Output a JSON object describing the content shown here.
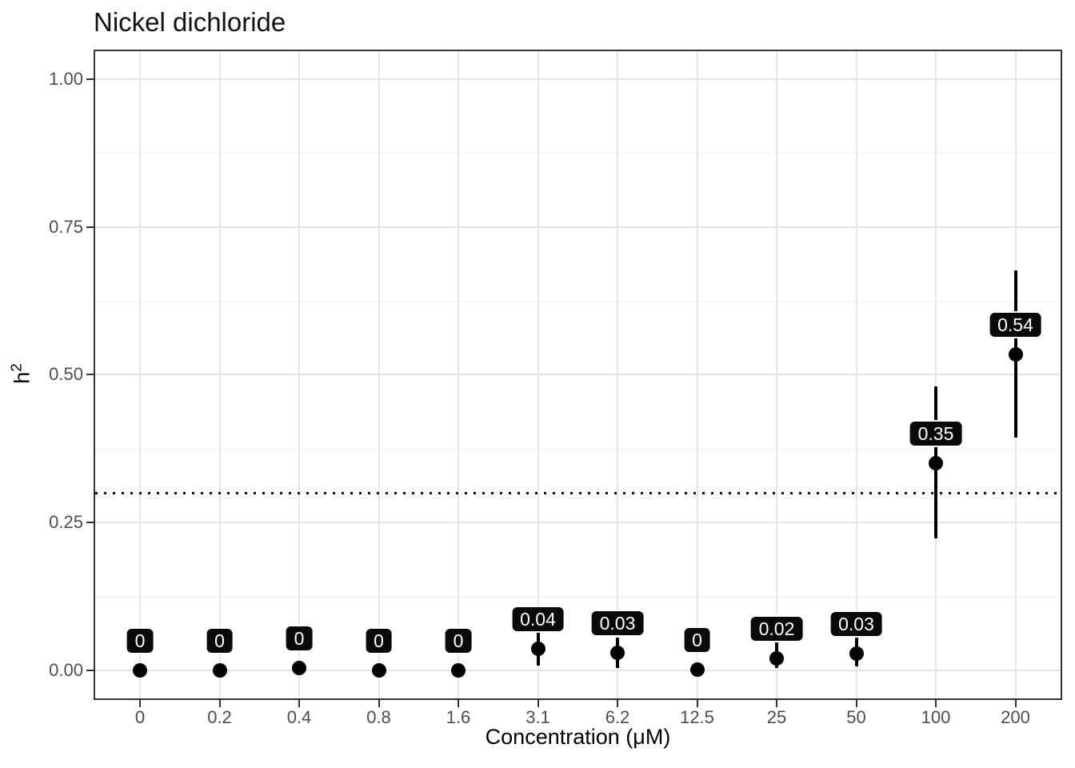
{
  "title": "Nickel dichloride",
  "axes": {
    "x_label": "Concentration (μM)",
    "y_label_base": "h",
    "y_label_exp": "2"
  },
  "chart_data": {
    "type": "scatter",
    "subtype": "pointrange",
    "title": "Nickel dichloride",
    "xlabel": "Concentration (μM)",
    "ylabel": "h^2",
    "categories": [
      "0",
      "0.2",
      "0.4",
      "0.8",
      "1.6",
      "3.1",
      "6.2",
      "12.5",
      "25",
      "50",
      "100",
      "200"
    ],
    "values": [
      0,
      0,
      0.004,
      0,
      0,
      0.037,
      0.03,
      0.002,
      0.02,
      0.028,
      0.35,
      0.535
    ],
    "ci_lower": [
      null,
      null,
      null,
      null,
      null,
      0.008,
      0.004,
      null,
      0.004,
      0.007,
      0.223,
      0.394
    ],
    "ci_upper": [
      null,
      null,
      null,
      null,
      null,
      0.065,
      0.055,
      null,
      0.05,
      0.055,
      0.48,
      0.676
    ],
    "point_labels": [
      "0",
      "0",
      "0",
      "0",
      "0",
      "0.04",
      "0.03",
      "0",
      "0.02",
      "0.03",
      "0.35",
      "0.54"
    ],
    "label_offset_y": 0.05,
    "reference_line": {
      "y": 0.3,
      "style": "dotted",
      "color": "#111111"
    },
    "y_ticks": [
      {
        "value": 0,
        "label": "0.00"
      },
      {
        "value": 0.25,
        "label": "0.25"
      },
      {
        "value": 0.5,
        "label": "0.50"
      },
      {
        "value": 0.75,
        "label": "0.75"
      },
      {
        "value": 1.0,
        "label": "1.00"
      }
    ],
    "y_minor_ticks": [
      0.125,
      0.375,
      0.625,
      0.875
    ],
    "ylim": [
      -0.05,
      1.05
    ],
    "grid": true,
    "legend": "none",
    "colors": {
      "point": "#000000",
      "label_bg": "#0a0a0a",
      "label_text": "#ffffff",
      "grid_major": "#e5e5e5",
      "grid_minor": "#f0f0f0",
      "panel_border": "#333333",
      "tick_text": "#4d4d4d"
    }
  }
}
